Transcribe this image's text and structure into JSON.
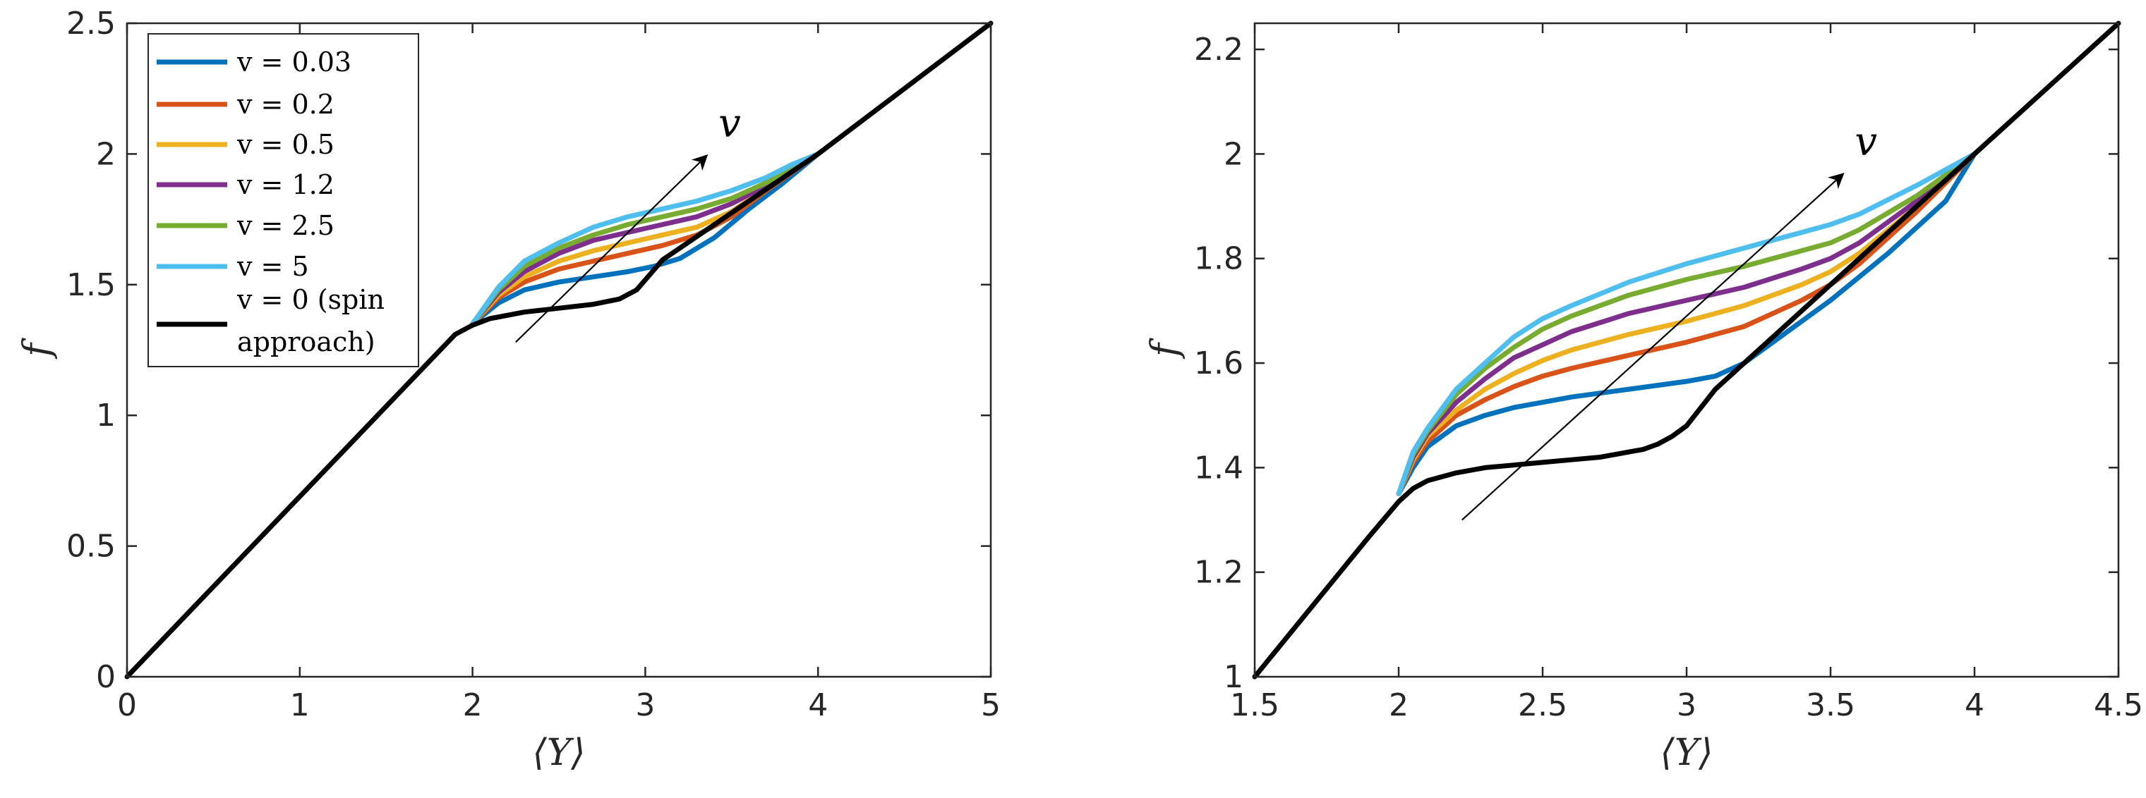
{
  "chart_data": [
    {
      "type": "line",
      "title": "",
      "xlabel": "⟨Y⟩",
      "ylabel": "f",
      "xlim": [
        0,
        5
      ],
      "ylim": [
        0,
        2.5
      ],
      "xticks": [
        0,
        1,
        2,
        3,
        4,
        5
      ],
      "xtick_labels": [
        "0",
        "1",
        "2",
        "3",
        "4",
        "5"
      ],
      "yticks": [
        0,
        0.5,
        1,
        1.5,
        2,
        2.5
      ],
      "ytick_labels": [
        "0",
        "0.5",
        "1",
        "1.5",
        "2",
        "2.5"
      ],
      "grid": false,
      "legend": {
        "placement": "top-left",
        "entries": [
          "v = 0.03",
          "v = 0.2",
          "v = 0.5",
          "v = 1.2",
          "v = 2.5",
          "v = 5",
          "v = 0 (spin approach)"
        ]
      },
      "annotation": {
        "text": "v",
        "arrow_from": [
          2.25,
          1.28
        ],
        "arrow_to": [
          3.35,
          1.99
        ]
      },
      "series": [
        {
          "name": "v = 0.03",
          "color": "#0072BD",
          "x": [
            2.0,
            2.15,
            2.3,
            2.5,
            2.7,
            2.9,
            3.05,
            3.2,
            3.4,
            3.6,
            3.8,
            4.0
          ],
          "y": [
            1.35,
            1.43,
            1.48,
            1.51,
            1.53,
            1.55,
            1.57,
            1.6,
            1.68,
            1.79,
            1.89,
            2.0
          ]
        },
        {
          "name": "v = 0.2",
          "color": "#D95319",
          "x": [
            2.0,
            2.15,
            2.3,
            2.5,
            2.7,
            2.9,
            3.1,
            3.3,
            3.5,
            3.7,
            3.85,
            4.0
          ],
          "y": [
            1.35,
            1.45,
            1.51,
            1.56,
            1.59,
            1.62,
            1.65,
            1.69,
            1.76,
            1.86,
            1.93,
            2.0
          ]
        },
        {
          "name": "v = 0.5",
          "color": "#EDB120",
          "x": [
            2.0,
            2.15,
            2.3,
            2.5,
            2.7,
            2.9,
            3.1,
            3.3,
            3.5,
            3.7,
            3.85,
            4.0
          ],
          "y": [
            1.35,
            1.46,
            1.53,
            1.59,
            1.63,
            1.66,
            1.69,
            1.72,
            1.78,
            1.87,
            1.94,
            2.0
          ]
        },
        {
          "name": "v = 1.2",
          "color": "#7E2F8E",
          "x": [
            2.0,
            2.15,
            2.3,
            2.5,
            2.7,
            2.9,
            3.1,
            3.3,
            3.5,
            3.7,
            3.85,
            4.0
          ],
          "y": [
            1.35,
            1.47,
            1.55,
            1.62,
            1.67,
            1.7,
            1.73,
            1.76,
            1.81,
            1.88,
            1.94,
            2.0
          ]
        },
        {
          "name": "v = 2.5",
          "color": "#77AC30",
          "x": [
            2.0,
            2.15,
            2.3,
            2.5,
            2.7,
            2.9,
            3.1,
            3.3,
            3.5,
            3.7,
            3.85,
            4.0
          ],
          "y": [
            1.35,
            1.48,
            1.57,
            1.64,
            1.69,
            1.73,
            1.76,
            1.79,
            1.83,
            1.89,
            1.95,
            2.0
          ]
        },
        {
          "name": "v = 5",
          "color": "#4DBEEE",
          "x": [
            2.0,
            2.15,
            2.3,
            2.5,
            2.7,
            2.9,
            3.1,
            3.3,
            3.5,
            3.7,
            3.85,
            4.0
          ],
          "y": [
            1.35,
            1.49,
            1.59,
            1.66,
            1.72,
            1.76,
            1.79,
            1.82,
            1.86,
            1.91,
            1.96,
            2.0
          ]
        },
        {
          "name": "v = 0 (spin approach)",
          "color": "#000000",
          "x": [
            0,
            1.9,
            2.0,
            2.1,
            2.3,
            2.5,
            2.7,
            2.85,
            2.95,
            3.1,
            4.0,
            5.0
          ],
          "y": [
            0,
            1.31,
            1.345,
            1.37,
            1.395,
            1.41,
            1.425,
            1.445,
            1.48,
            1.595,
            2.0,
            2.5
          ]
        }
      ]
    },
    {
      "type": "line",
      "title": "",
      "xlabel": "⟨Y⟩",
      "ylabel": "f",
      "xlim": [
        1.5,
        4.5
      ],
      "ylim": [
        1,
        2.25
      ],
      "xticks": [
        1.5,
        2,
        2.5,
        3,
        3.5,
        4,
        4.5
      ],
      "xtick_labels": [
        "1.5",
        "2",
        "2.5",
        "3",
        "3.5",
        "4",
        "4.5"
      ],
      "yticks": [
        1,
        1.2,
        1.4,
        1.6,
        1.8,
        2,
        2.2
      ],
      "ytick_labels": [
        "1",
        "1.2",
        "1.4",
        "1.6",
        "1.8",
        "2",
        "2.2"
      ],
      "grid": false,
      "annotation": {
        "text": "v",
        "arrow_from": [
          2.22,
          1.3
        ],
        "arrow_to": [
          3.54,
          1.96
        ]
      },
      "series": [
        {
          "name": "v = 0.03",
          "color": "#0072BD",
          "x": [
            2.0,
            2.05,
            2.1,
            2.2,
            2.3,
            2.4,
            2.5,
            2.6,
            2.8,
            3.0,
            3.1,
            3.2,
            3.3,
            3.5,
            3.7,
            3.9,
            4.0
          ],
          "y": [
            1.35,
            1.4,
            1.44,
            1.48,
            1.5,
            1.515,
            1.525,
            1.535,
            1.55,
            1.565,
            1.575,
            1.6,
            1.64,
            1.72,
            1.81,
            1.91,
            2.0
          ]
        },
        {
          "name": "v = 0.2",
          "color": "#D95319",
          "x": [
            2.0,
            2.05,
            2.1,
            2.2,
            2.3,
            2.4,
            2.5,
            2.6,
            2.8,
            3.0,
            3.2,
            3.4,
            3.5,
            3.6,
            3.8,
            4.0
          ],
          "y": [
            1.35,
            1.41,
            1.45,
            1.5,
            1.53,
            1.555,
            1.575,
            1.59,
            1.615,
            1.64,
            1.67,
            1.72,
            1.75,
            1.79,
            1.89,
            2.0
          ]
        },
        {
          "name": "v = 0.5",
          "color": "#EDB120",
          "x": [
            2.0,
            2.05,
            2.1,
            2.2,
            2.3,
            2.4,
            2.5,
            2.6,
            2.8,
            3.0,
            3.2,
            3.4,
            3.5,
            3.6,
            3.8,
            4.0
          ],
          "y": [
            1.35,
            1.415,
            1.46,
            1.51,
            1.55,
            1.58,
            1.605,
            1.625,
            1.655,
            1.68,
            1.71,
            1.75,
            1.775,
            1.81,
            1.9,
            2.0
          ]
        },
        {
          "name": "v = 1.2",
          "color": "#7E2F8E",
          "x": [
            2.0,
            2.05,
            2.1,
            2.2,
            2.3,
            2.4,
            2.5,
            2.6,
            2.8,
            3.0,
            3.2,
            3.4,
            3.5,
            3.6,
            3.8,
            4.0
          ],
          "y": [
            1.35,
            1.42,
            1.465,
            1.525,
            1.57,
            1.61,
            1.635,
            1.66,
            1.695,
            1.72,
            1.745,
            1.78,
            1.8,
            1.83,
            1.91,
            2.0
          ]
        },
        {
          "name": "v = 2.5",
          "color": "#77AC30",
          "x": [
            2.0,
            2.05,
            2.1,
            2.2,
            2.3,
            2.4,
            2.5,
            2.6,
            2.8,
            3.0,
            3.2,
            3.4,
            3.5,
            3.6,
            3.8,
            4.0
          ],
          "y": [
            1.35,
            1.425,
            1.47,
            1.54,
            1.59,
            1.63,
            1.665,
            1.69,
            1.73,
            1.76,
            1.785,
            1.815,
            1.83,
            1.855,
            1.92,
            2.0
          ]
        },
        {
          "name": "v = 5",
          "color": "#4DBEEE",
          "x": [
            2.0,
            2.05,
            2.1,
            2.2,
            2.3,
            2.4,
            2.5,
            2.6,
            2.8,
            3.0,
            3.2,
            3.4,
            3.5,
            3.6,
            3.8,
            4.0
          ],
          "y": [
            1.35,
            1.43,
            1.475,
            1.55,
            1.6,
            1.65,
            1.685,
            1.71,
            1.755,
            1.79,
            1.82,
            1.85,
            1.865,
            1.885,
            1.94,
            2.0
          ]
        },
        {
          "name": "v = 0 (spin approach)",
          "color": "#000000",
          "x": [
            1.5,
            1.9,
            2.0,
            2.05,
            2.1,
            2.2,
            2.3,
            2.4,
            2.5,
            2.6,
            2.7,
            2.8,
            2.85,
            2.9,
            2.95,
            3.0,
            3.1,
            3.2,
            4.0,
            4.5
          ],
          "y": [
            1.0,
            1.27,
            1.335,
            1.36,
            1.375,
            1.39,
            1.4,
            1.405,
            1.41,
            1.415,
            1.42,
            1.43,
            1.435,
            1.445,
            1.46,
            1.48,
            1.55,
            1.6,
            2.0,
            2.25
          ]
        }
      ]
    }
  ]
}
